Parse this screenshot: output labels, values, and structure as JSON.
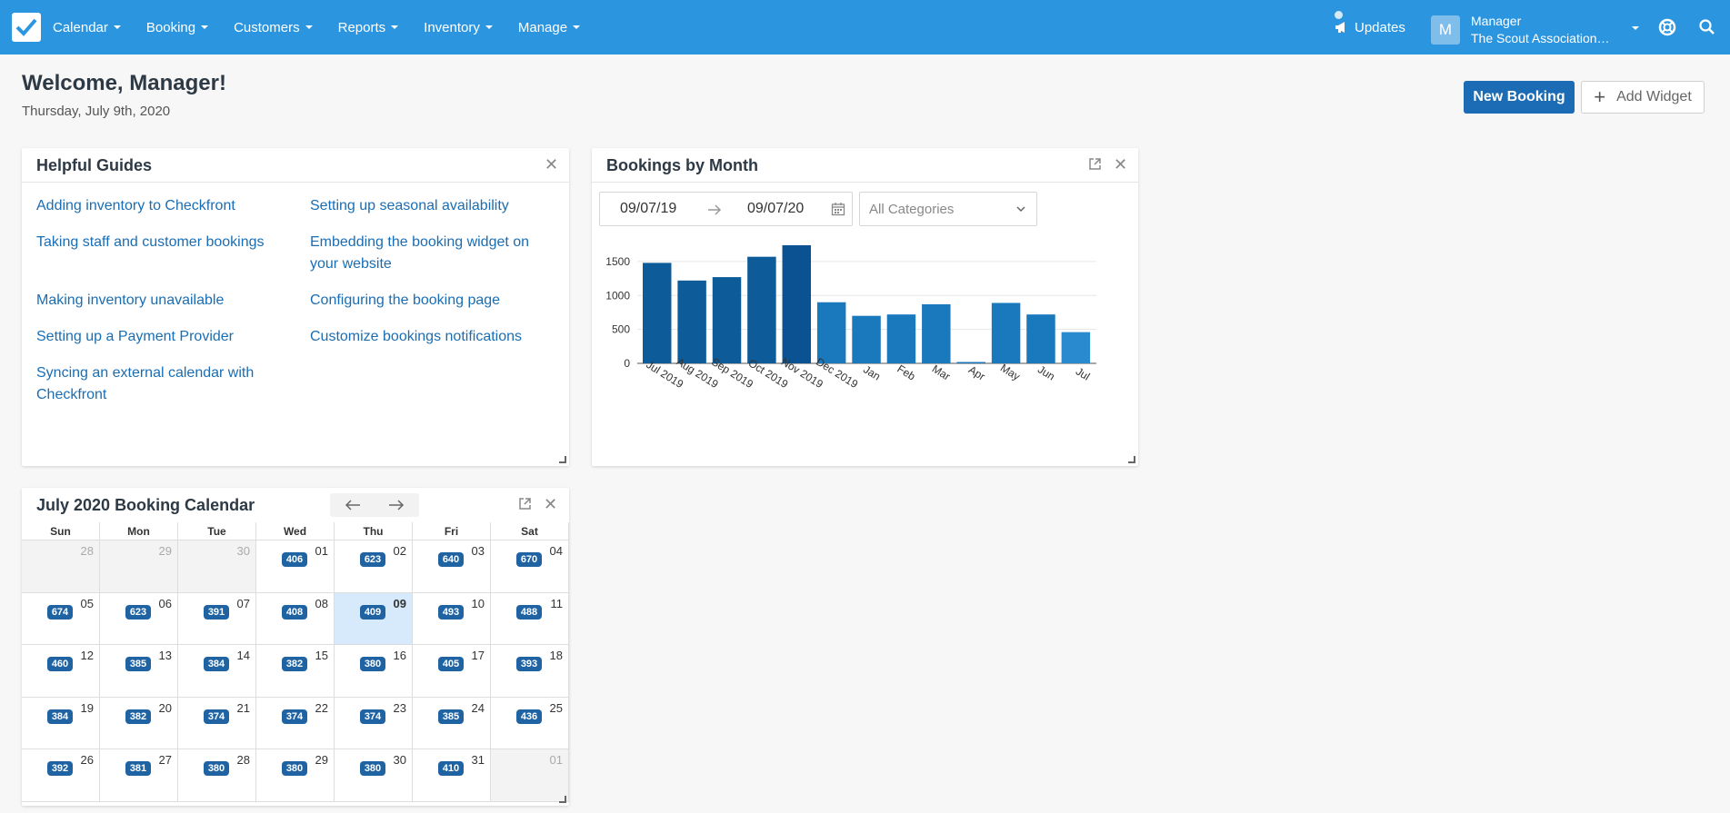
{
  "nav": {
    "menu": [
      "Calendar",
      "Booking",
      "Customers",
      "Reports",
      "Inventory",
      "Manage"
    ],
    "updates": "Updates",
    "user": {
      "initial": "M",
      "name": "Manager",
      "org": "The Scout Association…"
    }
  },
  "header": {
    "title": "Welcome, Manager!",
    "date": "Thursday, July 9th, 2020",
    "new_booking": "New Booking",
    "add_widget": "Add Widget"
  },
  "guides": {
    "title": "Helpful Guides",
    "left": [
      [
        "Adding inventory to Checkfront"
      ],
      [
        "Taking staff and customer bookings"
      ],
      [
        "Making inventory unavailable"
      ],
      [
        "Setting up a Payment Provider"
      ],
      [
        "Syncing an external calendar with",
        "Checkfront"
      ]
    ],
    "right": [
      [
        "Setting up seasonal availability"
      ],
      [
        "Embedding the booking widget on",
        "your website"
      ],
      [
        "Configuring the booking page"
      ],
      [
        "Customize bookings notifications"
      ]
    ]
  },
  "bbm": {
    "title": "Bookings by Month",
    "from": "09/07/19",
    "to": "09/07/20",
    "category": "All Categories"
  },
  "chart_data": {
    "type": "bar",
    "categories": [
      "Jul 2019",
      "Aug 2019",
      "Sep 2019",
      "Oct 2019",
      "Nov 2019",
      "Dec 2019",
      "Jan",
      "Feb",
      "Mar",
      "Apr",
      "May",
      "Jun",
      "Jul"
    ],
    "values": [
      1480,
      1220,
      1270,
      1570,
      1740,
      900,
      700,
      720,
      870,
      20,
      890,
      720,
      460
    ],
    "colors": [
      "#0d5c99",
      "#0d5c99",
      "#0d5c99",
      "#0d5c99",
      "#0a5291",
      "#1a78bd",
      "#1a78bd",
      "#1a78bd",
      "#1a78bd",
      "#1a78bd",
      "#1a78bd",
      "#1a78bd",
      "#2a8ad0"
    ],
    "yticks": [
      0,
      500,
      1000,
      1500
    ],
    "ylim": [
      0,
      1900
    ],
    "grid": true
  },
  "calendar": {
    "title": "July 2020 Booking Calendar",
    "dow": [
      "Sun",
      "Mon",
      "Tue",
      "Wed",
      "Thu",
      "Fri",
      "Sat"
    ],
    "weeks": [
      [
        {
          "d": "28",
          "o": true
        },
        {
          "d": "29",
          "o": true
        },
        {
          "d": "30",
          "o": true
        },
        {
          "d": "01",
          "b": "406"
        },
        {
          "d": "02",
          "b": "623"
        },
        {
          "d": "03",
          "b": "640"
        },
        {
          "d": "04",
          "b": "670"
        }
      ],
      [
        {
          "d": "05",
          "b": "674"
        },
        {
          "d": "06",
          "b": "623"
        },
        {
          "d": "07",
          "b": "391"
        },
        {
          "d": "08",
          "b": "408"
        },
        {
          "d": "09",
          "b": "409",
          "t": true
        },
        {
          "d": "10",
          "b": "493"
        },
        {
          "d": "11",
          "b": "488"
        }
      ],
      [
        {
          "d": "12",
          "b": "460"
        },
        {
          "d": "13",
          "b": "385"
        },
        {
          "d": "14",
          "b": "384"
        },
        {
          "d": "15",
          "b": "382"
        },
        {
          "d": "16",
          "b": "380"
        },
        {
          "d": "17",
          "b": "405"
        },
        {
          "d": "18",
          "b": "393"
        }
      ],
      [
        {
          "d": "19",
          "b": "384"
        },
        {
          "d": "20",
          "b": "382"
        },
        {
          "d": "21",
          "b": "374"
        },
        {
          "d": "22",
          "b": "374"
        },
        {
          "d": "23",
          "b": "374"
        },
        {
          "d": "24",
          "b": "385"
        },
        {
          "d": "25",
          "b": "436"
        }
      ],
      [
        {
          "d": "26",
          "b": "392"
        },
        {
          "d": "27",
          "b": "381"
        },
        {
          "d": "28",
          "b": "380"
        },
        {
          "d": "29",
          "b": "380"
        },
        {
          "d": "30",
          "b": "380"
        },
        {
          "d": "31",
          "b": "410"
        },
        {
          "d": "01",
          "o": true
        }
      ]
    ]
  },
  "colors": {
    "nav": "#2b95df",
    "primary": "#1b6cb4",
    "link": "#1a6db3",
    "badge": "#2063a3",
    "today": "#d7eafb"
  }
}
